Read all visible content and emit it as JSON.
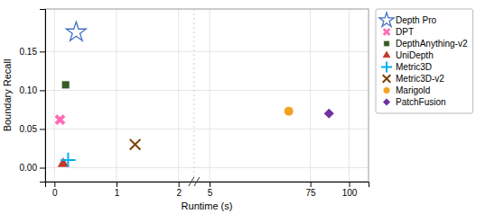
{
  "chart_data": {
    "type": "scatter",
    "xlabel": "Runtime (s)",
    "ylabel": "Boundary Recall",
    "series": [
      {
        "name": "Depth Pro",
        "color": "#4472c4",
        "marker": "star",
        "x": [
          0.35
        ],
        "values": [
          0.175
        ]
      },
      {
        "name": "DPT",
        "color": "#ff69b4",
        "marker": "X",
        "x": [
          0.09
        ],
        "values": [
          0.062
        ]
      },
      {
        "name": "DepthAnything-v2",
        "color": "#375a23",
        "marker": "square",
        "x": [
          0.18
        ],
        "values": [
          0.107
        ]
      },
      {
        "name": "UniDepth",
        "color": "#c0392b",
        "marker": "triangle",
        "x": [
          0.14
        ],
        "values": [
          0.005
        ]
      },
      {
        "name": "Metric3D",
        "color": "#00b0f0",
        "marker": "plus",
        "x": [
          0.22
        ],
        "values": [
          0.01
        ]
      },
      {
        "name": "Metric3D-v2",
        "color": "#7b3f00",
        "marker": "x",
        "x": [
          1.3
        ],
        "values": [
          0.03
        ]
      },
      {
        "name": "Marigold",
        "color": "#f4a020",
        "marker": "circle",
        "x": [
          60.0
        ],
        "values": [
          0.073
        ]
      },
      {
        "name": "PatchFusion",
        "color": "#7030a0",
        "marker": "diamond",
        "x": [
          87.0
        ],
        "values": [
          0.07
        ]
      }
    ],
    "xlim": [
      -0.15,
      112.5
    ],
    "xticks": [
      0,
      1,
      2,
      5,
      75,
      100
    ],
    "ylim": [
      -0.018,
      0.205
    ],
    "yticks": [
      {
        "value": 0,
        "label": "0.00"
      },
      {
        "value": 0.05,
        "label": "0.05"
      },
      {
        "value": 0.1,
        "label": "0.10"
      },
      {
        "value": 0.15,
        "label": "0.15"
      }
    ],
    "grid": true,
    "legend": "right"
  }
}
